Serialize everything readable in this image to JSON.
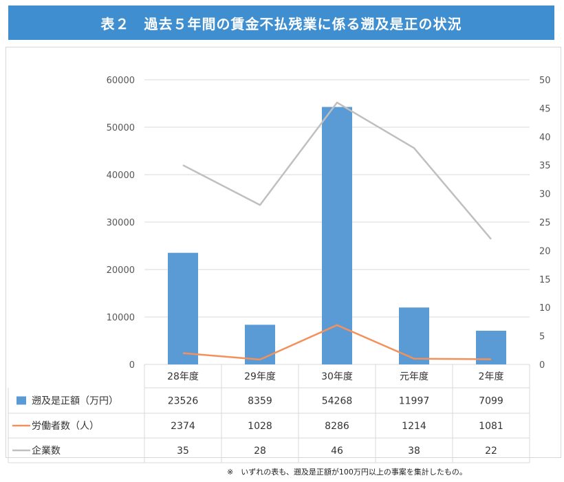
{
  "title": "表２　過去５年間の賃金不払残業に係る遡及是正の状況",
  "footnote": "※　いずれの表も、遡及是正額が100万円以上の事案を集計したもの。",
  "colors": {
    "title_bg": "#3f8fd0",
    "bar": "#5b9bd5",
    "workers_line": "#f4915a",
    "companies_line": "#bfbfbf",
    "grid": "#d9d9d9"
  },
  "chart_data": {
    "type": "bar",
    "categories": [
      "28年度",
      "29年度",
      "30年度",
      "元年度",
      "2年度"
    ],
    "series": [
      {
        "name": "遡及是正額（万円）",
        "kind": "bar",
        "axis": "left",
        "values": [
          23526,
          8359,
          54268,
          11997,
          7099
        ]
      },
      {
        "name": "労働者数（人）",
        "kind": "line",
        "axis": "left",
        "values": [
          2374,
          1028,
          8286,
          1214,
          1081
        ]
      },
      {
        "name": "企業数",
        "kind": "line",
        "axis": "right",
        "values": [
          35,
          28,
          46,
          38,
          22
        ]
      }
    ],
    "ylim": [
      0,
      60000
    ],
    "y_ticks": [
      0,
      10000,
      20000,
      30000,
      40000,
      50000,
      60000
    ],
    "y2lim": [
      0,
      50
    ],
    "y2_ticks": [
      0,
      5,
      10,
      15,
      20,
      25,
      30,
      35,
      40,
      45,
      50
    ],
    "grid": true,
    "legend": "data-table"
  }
}
